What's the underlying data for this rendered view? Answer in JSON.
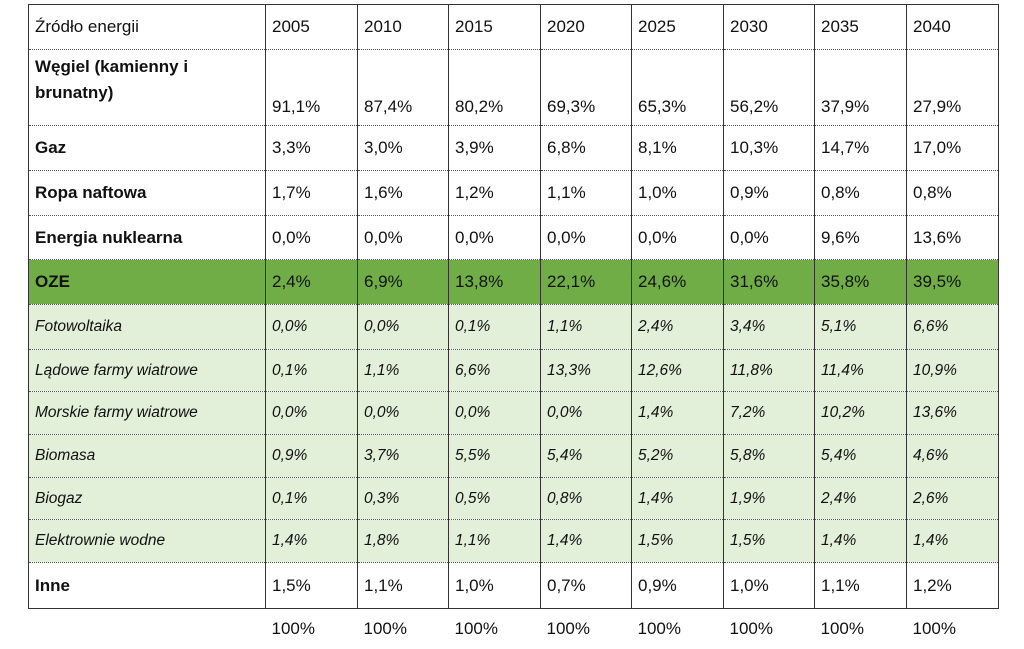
{
  "table": {
    "header": [
      "Źródło energii",
      "2005",
      "2010",
      "2015",
      "2020",
      "2025",
      "2030",
      "2035",
      "2040"
    ],
    "rows": [
      {
        "name": "Węgiel (kamienny i brunatny)",
        "values": [
          "91,1%",
          "87,4%",
          "80,2%",
          "69,3%",
          "65,3%",
          "56,2%",
          "37,9%",
          "27,9%"
        ]
      },
      {
        "name": "Gaz",
        "values": [
          "3,3%",
          "3,0%",
          "3,9%",
          "6,8%",
          "8,1%",
          "10,3%",
          "14,7%",
          "17,0%"
        ]
      },
      {
        "name": "Ropa naftowa",
        "values": [
          "1,7%",
          "1,6%",
          "1,2%",
          "1,1%",
          "1,0%",
          "0,9%",
          "0,8%",
          "0,8%"
        ]
      },
      {
        "name": "Energia nuklearna",
        "values": [
          "0,0%",
          "0,0%",
          "0,0%",
          "0,0%",
          "0,0%",
          "0,0%",
          "9,6%",
          "13,6%"
        ]
      },
      {
        "name": "OZE",
        "values": [
          "2,4%",
          "6,9%",
          "13,8%",
          "22,1%",
          "24,6%",
          "31,6%",
          "35,8%",
          "39,5%"
        ]
      },
      {
        "name": "Fotowoltaika",
        "values": [
          "0,0%",
          "0,0%",
          "0,1%",
          "1,1%",
          "2,4%",
          "3,4%",
          "5,1%",
          "6,6%"
        ]
      },
      {
        "name": "Lądowe farmy wiatrowe",
        "values": [
          "0,1%",
          "1,1%",
          "6,6%",
          "13,3%",
          "12,6%",
          "11,8%",
          "11,4%",
          "10,9%"
        ]
      },
      {
        "name": "Morskie farmy wiatrowe",
        "values": [
          "0,0%",
          "0,0%",
          "0,0%",
          "0,0%",
          "1,4%",
          "7,2%",
          "10,2%",
          "13,6%"
        ]
      },
      {
        "name": "Biomasa",
        "values": [
          "0,9%",
          "3,7%",
          "5,5%",
          "5,4%",
          "5,2%",
          "5,8%",
          "5,4%",
          "4,6%"
        ]
      },
      {
        "name": "Biogaz",
        "values": [
          "0,1%",
          "0,3%",
          "0,5%",
          "0,8%",
          "1,4%",
          "1,9%",
          "2,4%",
          "2,6%"
        ]
      },
      {
        "name": "Elektrownie wodne",
        "values": [
          "1,4%",
          "1,8%",
          "1,1%",
          "1,4%",
          "1,5%",
          "1,5%",
          "1,4%",
          "1,4%"
        ]
      },
      {
        "name": "Inne",
        "values": [
          "1,5%",
          "1,1%",
          "1,0%",
          "0,7%",
          "0,9%",
          "1,0%",
          "1,1%",
          "1,2%"
        ]
      }
    ],
    "totals": [
      "100%",
      "100%",
      "100%",
      "100%",
      "100%",
      "100%",
      "100%",
      "100%"
    ]
  },
  "colors": {
    "oze_row": "#70ad47",
    "oze_subrows": "#e2efd9",
    "border": "#333333"
  }
}
